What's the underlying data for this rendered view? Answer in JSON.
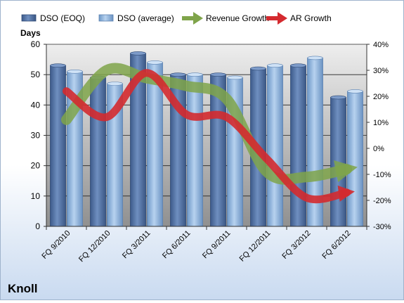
{
  "chart_data": {
    "type": "bar",
    "company": "Knoll",
    "categories": [
      "FQ 9/2010",
      "FQ 12/2010",
      "FQ 3/2011",
      "FQ 6/2011",
      "FQ 9/2011",
      "FQ 12/2011",
      "FQ 3/2012",
      "FQ 6/2012"
    ],
    "left_axis": {
      "label": "Days",
      "min": 0,
      "max": 60,
      "ticks": [
        "0",
        "10",
        "20",
        "30",
        "40",
        "50",
        "60"
      ]
    },
    "right_axis": {
      "min": -30,
      "max": 40,
      "ticks": [
        "-30%",
        "-20%",
        "-10%",
        "0%",
        "10%",
        "20%",
        "30%",
        "40%"
      ]
    },
    "grid": true,
    "legend_position": "top",
    "series": [
      {
        "name": "DSO (EOQ)",
        "kind": "bar",
        "axis": "left",
        "color": "#4f6fa0",
        "values": [
          53,
          49,
          57,
          50,
          50,
          52,
          53,
          42.5
        ]
      },
      {
        "name": "DSO (average)",
        "kind": "bar",
        "axis": "left",
        "color": "#8fb4de",
        "values": [
          51,
          47,
          54,
          50,
          49,
          53,
          55.5,
          44.5
        ]
      },
      {
        "name": "Revenue Growth",
        "kind": "line",
        "axis": "right",
        "unit": "%",
        "color": "#7fa44a",
        "values": [
          11,
          30,
          27,
          24,
          19,
          -9,
          -11,
          -8
        ]
      },
      {
        "name": "AR Growth",
        "kind": "line",
        "axis": "right",
        "unit": "%",
        "color": "#d42a2f",
        "values": [
          22,
          12,
          29,
          13,
          12,
          -4,
          -19,
          -17
        ]
      }
    ]
  }
}
